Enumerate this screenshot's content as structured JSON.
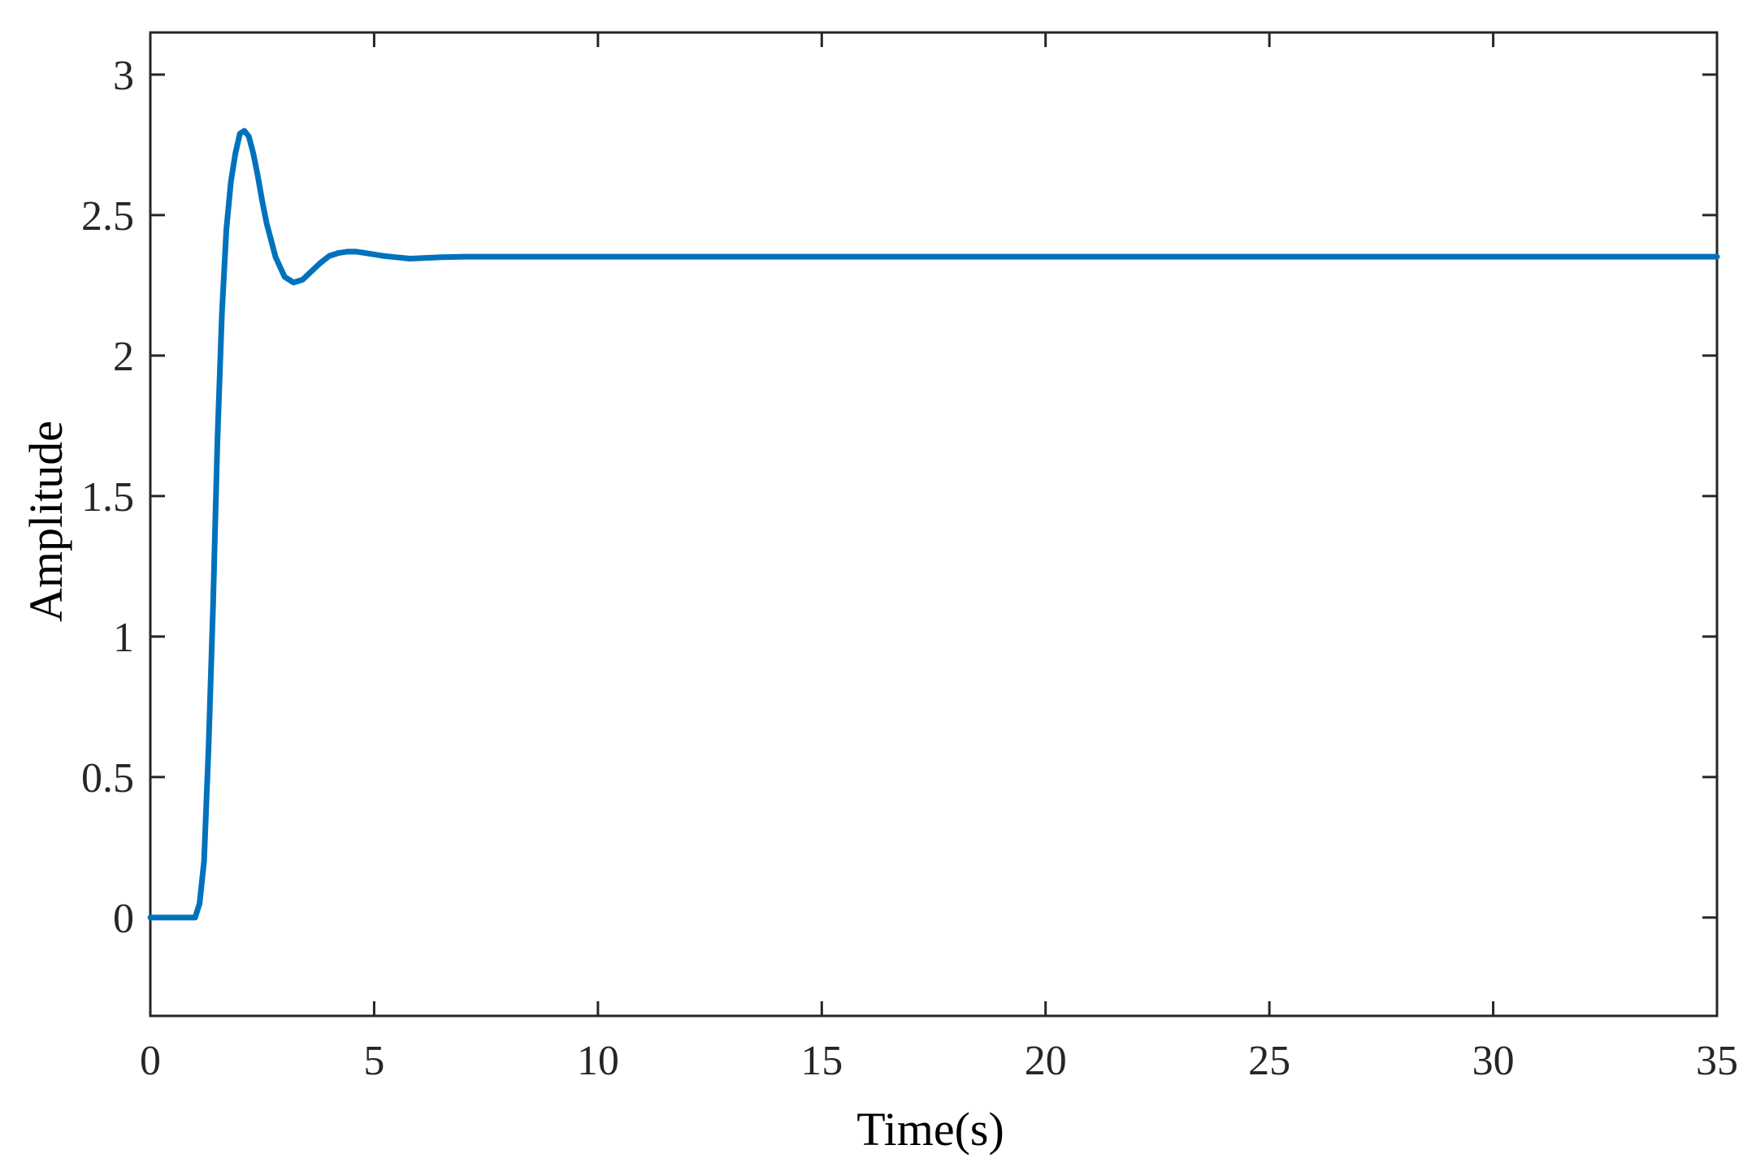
{
  "chart_data": {
    "type": "line",
    "title": "",
    "xlabel": "Time(s)",
    "ylabel": "Amplitude",
    "xlim": [
      0,
      35
    ],
    "ylim": [
      -0.35,
      3.15
    ],
    "xticks": [
      0,
      5,
      10,
      15,
      20,
      25,
      30,
      35
    ],
    "xtick_labels": [
      "0",
      "5",
      "10",
      "15",
      "20",
      "25",
      "30",
      "35"
    ],
    "yticks": [
      0,
      0.5,
      1,
      1.5,
      2,
      2.5,
      3
    ],
    "ytick_labels": [
      "0",
      "0.5",
      "1",
      "1.5",
      "2",
      "2.5",
      "3"
    ],
    "grid": false,
    "series": [
      {
        "color": "#0072BD",
        "x": [
          0,
          1.0,
          1.1,
          1.2,
          1.3,
          1.4,
          1.5,
          1.6,
          1.7,
          1.8,
          1.9,
          2.0,
          2.1,
          2.2,
          2.3,
          2.4,
          2.5,
          2.6,
          2.8,
          3.0,
          3.2,
          3.4,
          3.6,
          3.8,
          4.0,
          4.2,
          4.4,
          4.6,
          4.8,
          5.0,
          5.2,
          5.5,
          5.8,
          6.1,
          6.5,
          7.0,
          7.5,
          8.0,
          9.0,
          10,
          15,
          20,
          25,
          30,
          35
        ],
        "y": [
          0,
          0,
          0.05,
          0.2,
          0.6,
          1.1,
          1.7,
          2.15,
          2.45,
          2.62,
          2.72,
          2.79,
          2.8,
          2.78,
          2.72,
          2.64,
          2.55,
          2.47,
          2.35,
          2.28,
          2.26,
          2.27,
          2.3,
          2.33,
          2.355,
          2.365,
          2.37,
          2.37,
          2.365,
          2.36,
          2.355,
          2.35,
          2.345,
          2.347,
          2.35,
          2.352,
          2.352,
          2.352,
          2.352,
          2.352,
          2.352,
          2.352,
          2.352,
          2.352,
          2.352
        ]
      }
    ]
  }
}
